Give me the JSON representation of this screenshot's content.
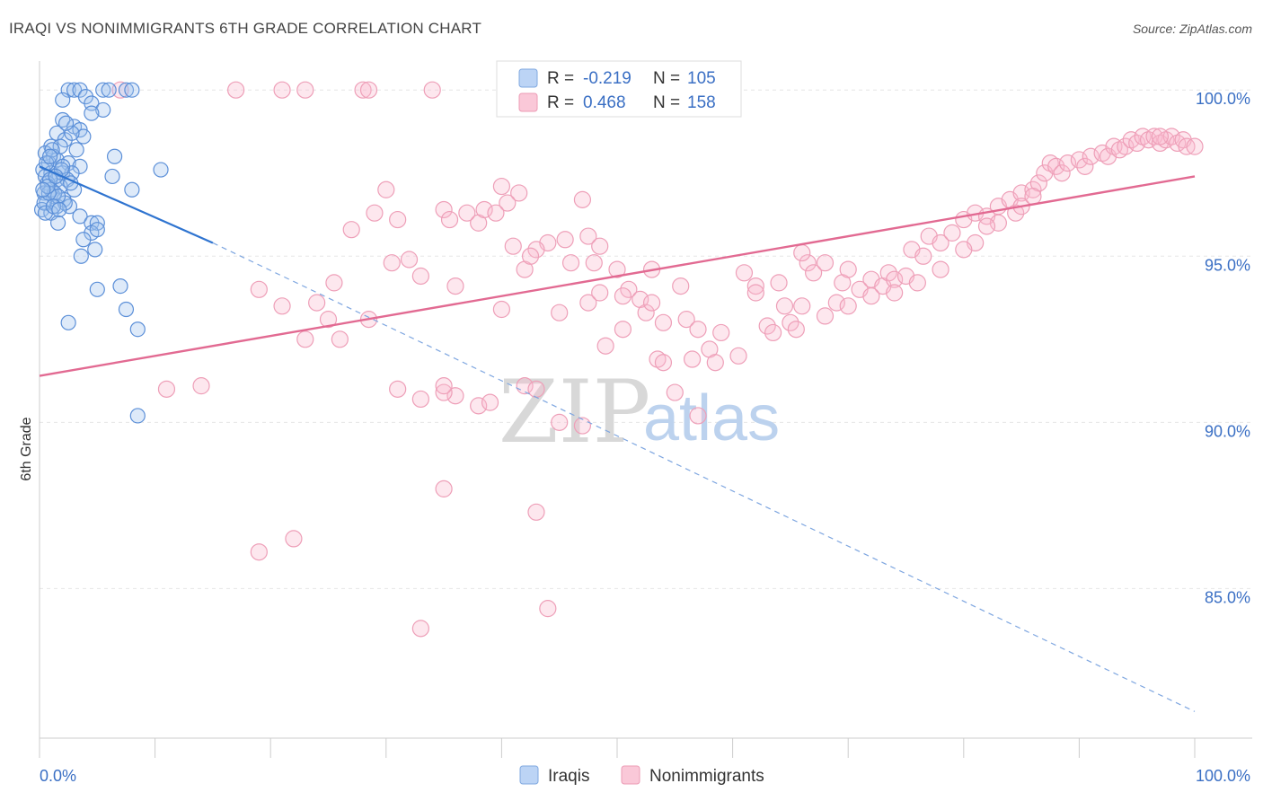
{
  "header": {
    "title": "IRAQI VS NONIMMIGRANTS 6TH GRADE CORRELATION CHART",
    "source": "Source: ZipAtlas.com"
  },
  "watermark": {
    "part1": "ZIP",
    "part2": "atlas"
  },
  "colors": {
    "iraqis": "#4a86d8",
    "nonimmigrants": "#e8799c",
    "tick_text": "#3a6fc4"
  },
  "legend_top": [
    {
      "r_label": "R =",
      "r_value": "-0.219",
      "n_label": "N =",
      "n_value": "105"
    },
    {
      "r_label": "R =",
      "r_value": "0.468",
      "n_label": "N =",
      "n_value": "158"
    }
  ],
  "legend_bottom": [
    "Iraqis",
    "Nonimmigrants"
  ],
  "chart_data": {
    "type": "scatter",
    "title": "IRAQI VS NONIMMIGRANTS 6TH GRADE CORRELATION CHART",
    "xlabel": "",
    "ylabel": "6th Grade",
    "xlim": [
      0,
      100
    ],
    "ylim": [
      80.5,
      100.6
    ],
    "x_tick_labels": [
      "0.0%",
      "100.0%"
    ],
    "y_ticks": [
      85,
      90,
      95,
      100
    ],
    "y_tick_labels": [
      "85.0%",
      "90.0%",
      "95.0%",
      "100.0%"
    ],
    "grid": true,
    "legend_position": "top-center",
    "series": [
      {
        "name": "Iraqis",
        "R": -0.219,
        "N": 105,
        "trend": {
          "x": [
            0,
            15
          ],
          "y": [
            97.7,
            95.4
          ],
          "dashed_extension_to": [
            100,
            81.3
          ]
        },
        "points": [
          [
            2.5,
            100
          ],
          [
            3.0,
            100
          ],
          [
            3.5,
            100
          ],
          [
            5.5,
            100
          ],
          [
            6.0,
            100
          ],
          [
            7.5,
            100
          ],
          [
            8.0,
            100
          ],
          [
            2.0,
            99.7
          ],
          [
            4.0,
            99.8
          ],
          [
            4.5,
            99.6
          ],
          [
            5.5,
            99.4
          ],
          [
            2.0,
            99.1
          ],
          [
            4.5,
            99.3
          ],
          [
            3.0,
            98.9
          ],
          [
            3.5,
            98.8
          ],
          [
            1.5,
            98.7
          ],
          [
            3.8,
            98.6
          ],
          [
            2.2,
            98.5
          ],
          [
            1.0,
            98.3
          ],
          [
            1.8,
            98.3
          ],
          [
            3.2,
            98.2
          ],
          [
            0.5,
            98.1
          ],
          [
            1.2,
            98.0
          ],
          [
            0.8,
            97.8
          ],
          [
            1.5,
            97.9
          ],
          [
            2.5,
            97.8
          ],
          [
            3.5,
            97.7
          ],
          [
            0.3,
            97.6
          ],
          [
            1.0,
            97.5
          ],
          [
            2.0,
            97.5
          ],
          [
            2.8,
            97.5
          ],
          [
            0.5,
            97.4
          ],
          [
            1.5,
            97.3
          ],
          [
            2.4,
            97.3
          ],
          [
            0.7,
            97.2
          ],
          [
            1.8,
            97.1
          ],
          [
            3.0,
            97.0
          ],
          [
            0.4,
            96.9
          ],
          [
            1.2,
            96.8
          ],
          [
            2.1,
            96.7
          ],
          [
            0.6,
            96.6
          ],
          [
            1.5,
            96.5
          ],
          [
            2.6,
            96.5
          ],
          [
            0.2,
            96.4
          ],
          [
            1.0,
            96.3
          ],
          [
            3.5,
            96.2
          ],
          [
            1.6,
            96.0
          ],
          [
            4.5,
            96.0
          ],
          [
            5.0,
            96.0
          ],
          [
            4.5,
            95.7
          ],
          [
            5.0,
            95.8
          ],
          [
            3.8,
            95.5
          ],
          [
            4.8,
            95.2
          ],
          [
            3.6,
            95.0
          ],
          [
            6.5,
            98.0
          ],
          [
            6.3,
            97.4
          ],
          [
            8.0,
            97.0
          ],
          [
            10.5,
            97.6
          ],
          [
            5.0,
            94.0
          ],
          [
            7.0,
            94.1
          ],
          [
            7.5,
            93.4
          ],
          [
            8.5,
            92.8
          ],
          [
            2.5,
            93.0
          ],
          [
            8.5,
            90.2
          ],
          [
            1.0,
            97.0
          ],
          [
            1.3,
            96.9
          ],
          [
            2.0,
            97.7
          ],
          [
            0.9,
            97.3
          ],
          [
            2.2,
            96.6
          ],
          [
            0.4,
            96.6
          ],
          [
            1.6,
            96.8
          ],
          [
            0.8,
            96.9
          ],
          [
            0.6,
            97.8
          ],
          [
            1.1,
            98.2
          ],
          [
            2.8,
            98.7
          ],
          [
            2.3,
            99.0
          ],
          [
            0.7,
            97.1
          ],
          [
            1.9,
            97.6
          ],
          [
            1.4,
            97.4
          ],
          [
            0.5,
            96.3
          ],
          [
            0.3,
            97.0
          ],
          [
            1.2,
            96.5
          ],
          [
            2.7,
            97.2
          ],
          [
            0.9,
            98.0
          ],
          [
            1.7,
            96.4
          ]
        ]
      },
      {
        "name": "Nonimmigrants",
        "R": 0.468,
        "N": 158,
        "trend": {
          "x": [
            0,
            100
          ],
          "y": [
            91.4,
            97.4
          ]
        },
        "points": [
          [
            17,
            100
          ],
          [
            21,
            100
          ],
          [
            23,
            100
          ],
          [
            28,
            100
          ],
          [
            28.5,
            100
          ],
          [
            34,
            100
          ],
          [
            7,
            100
          ],
          [
            30,
            97
          ],
          [
            40,
            97.1
          ],
          [
            41.5,
            96.9
          ],
          [
            40.5,
            96.6
          ],
          [
            35,
            96.4
          ],
          [
            29,
            96.3
          ],
          [
            27,
            95.8
          ],
          [
            31,
            96.1
          ],
          [
            35.5,
            96.1
          ],
          [
            38,
            96.0
          ],
          [
            47,
            96.7
          ],
          [
            44,
            95.4
          ],
          [
            47.5,
            95.6
          ],
          [
            48.5,
            95.3
          ],
          [
            43,
            95.2
          ],
          [
            46,
            94.8
          ],
          [
            32,
            94.9
          ],
          [
            33,
            94.4
          ],
          [
            36,
            94.1
          ],
          [
            25.5,
            94.2
          ],
          [
            24,
            93.6
          ],
          [
            28.5,
            93.1
          ],
          [
            25,
            93.1
          ],
          [
            30.5,
            94.8
          ],
          [
            40,
            93.4
          ],
          [
            42,
            94.6
          ],
          [
            45,
            93.3
          ],
          [
            47.5,
            93.6
          ],
          [
            50,
            94.6
          ],
          [
            51,
            94.0
          ],
          [
            52,
            93.7
          ],
          [
            52.5,
            93.3
          ],
          [
            53,
            94.6
          ],
          [
            54,
            93.0
          ],
          [
            55.5,
            94.1
          ],
          [
            56,
            93.1
          ],
          [
            57,
            92.8
          ],
          [
            58,
            92.2
          ],
          [
            58.5,
            91.8
          ],
          [
            56.5,
            91.9
          ],
          [
            59,
            92.7
          ],
          [
            60.5,
            92.0
          ],
          [
            61,
            94.5
          ],
          [
            62,
            94.1
          ],
          [
            63,
            92.9
          ],
          [
            63.5,
            92.7
          ],
          [
            64.5,
            93.5
          ],
          [
            65,
            93.0
          ],
          [
            65.5,
            92.8
          ],
          [
            66,
            93.5
          ],
          [
            66.5,
            94.8
          ],
          [
            67,
            94.5
          ],
          [
            68,
            93.2
          ],
          [
            69,
            93.6
          ],
          [
            69.5,
            94.2
          ],
          [
            70,
            94.6
          ],
          [
            71,
            94.0
          ],
          [
            72,
            94.3
          ],
          [
            73,
            94.1
          ],
          [
            73.5,
            94.5
          ],
          [
            74,
            94.3
          ],
          [
            75,
            94.4
          ],
          [
            75.5,
            95.2
          ],
          [
            76.5,
            95.0
          ],
          [
            77,
            95.6
          ],
          [
            78,
            95.4
          ],
          [
            79,
            95.7
          ],
          [
            80,
            96.1
          ],
          [
            81,
            96.3
          ],
          [
            82,
            96.2
          ],
          [
            83,
            96.5
          ],
          [
            84,
            96.7
          ],
          [
            84.5,
            96.3
          ],
          [
            85,
            96.9
          ],
          [
            86,
            97.0
          ],
          [
            86.5,
            97.2
          ],
          [
            87,
            97.5
          ],
          [
            87.5,
            97.8
          ],
          [
            88,
            97.7
          ],
          [
            88.5,
            97.5
          ],
          [
            89,
            97.8
          ],
          [
            90,
            97.9
          ],
          [
            90.5,
            97.7
          ],
          [
            91,
            98.0
          ],
          [
            92,
            98.1
          ],
          [
            92.5,
            98.0
          ],
          [
            93,
            98.3
          ],
          [
            93.5,
            98.2
          ],
          [
            94,
            98.3
          ],
          [
            94.5,
            98.5
          ],
          [
            95,
            98.4
          ],
          [
            95.5,
            98.6
          ],
          [
            96,
            98.5
          ],
          [
            96.5,
            98.6
          ],
          [
            97,
            98.4
          ],
          [
            97.5,
            98.5
          ],
          [
            98,
            98.6
          ],
          [
            98.5,
            98.4
          ],
          [
            99,
            98.5
          ],
          [
            99.3,
            98.3
          ],
          [
            100,
            98.3
          ],
          [
            97,
            98.6
          ],
          [
            85,
            96.5
          ],
          [
            86,
            96.8
          ],
          [
            83,
            96.0
          ],
          [
            82,
            95.9
          ],
          [
            81,
            95.4
          ],
          [
            80,
            95.2
          ],
          [
            78,
            94.6
          ],
          [
            76,
            94.2
          ],
          [
            74,
            93.9
          ],
          [
            72,
            93.8
          ],
          [
            70,
            93.5
          ],
          [
            68,
            94.8
          ],
          [
            66,
            95.1
          ],
          [
            64,
            94.2
          ],
          [
            62,
            93.9
          ],
          [
            49,
            92.3
          ],
          [
            50.5,
            92.8
          ],
          [
            53,
            93.6
          ],
          [
            53.5,
            91.9
          ],
          [
            54,
            91.8
          ],
          [
            55,
            90.9
          ],
          [
            57,
            90.2
          ],
          [
            42,
            91.1
          ],
          [
            43,
            91.0
          ],
          [
            36,
            90.8
          ],
          [
            38,
            90.5
          ],
          [
            35,
            90.9
          ],
          [
            45,
            90.0
          ],
          [
            47,
            89.9
          ],
          [
            39,
            90.6
          ],
          [
            11,
            91.0
          ],
          [
            14,
            91.1
          ],
          [
            31,
            91.0
          ],
          [
            33,
            90.7
          ],
          [
            35,
            91.1
          ],
          [
            19,
            94.0
          ],
          [
            21,
            93.5
          ],
          [
            23,
            92.5
          ],
          [
            26,
            92.5
          ],
          [
            35,
            88.0
          ],
          [
            43,
            87.3
          ],
          [
            22,
            86.5
          ],
          [
            19,
            86.1
          ],
          [
            44,
            84.4
          ],
          [
            33,
            83.8
          ],
          [
            37,
            96.3
          ],
          [
            38.5,
            96.4
          ],
          [
            39.5,
            96.3
          ],
          [
            41,
            95.3
          ],
          [
            42.5,
            95.0
          ],
          [
            45.5,
            95.5
          ],
          [
            48,
            94.8
          ],
          [
            48.5,
            93.9
          ],
          [
            50.5,
            93.8
          ]
        ]
      }
    ]
  }
}
